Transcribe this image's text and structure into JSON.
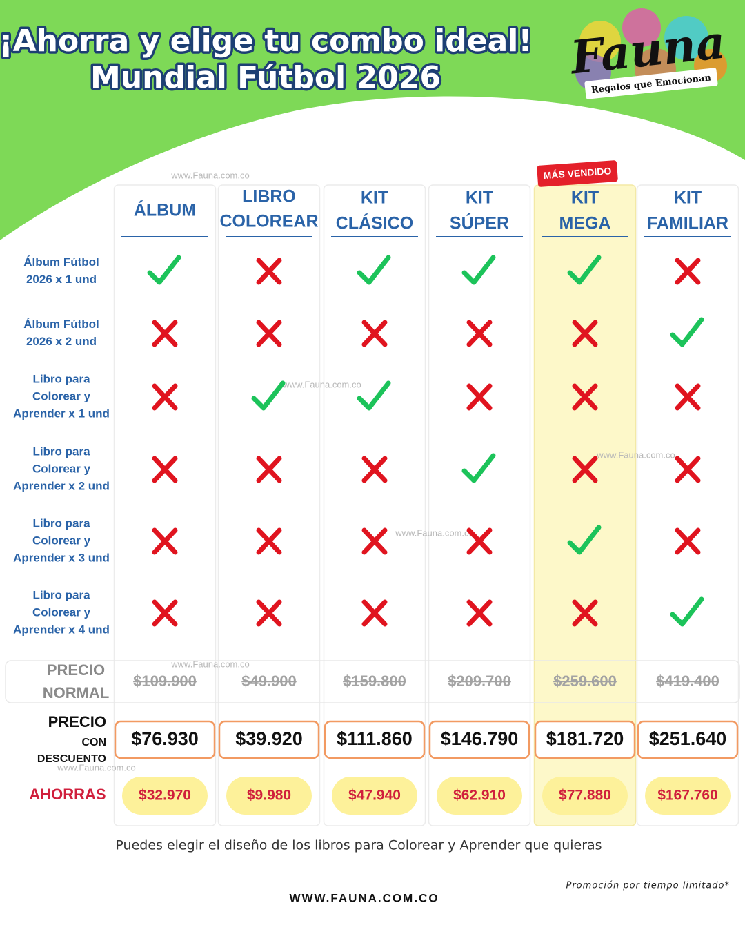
{
  "header": {
    "title_lines": [
      "¡Ahorra y elige tu combo ideal!",
      "Mundial Fútbol 2026"
    ],
    "logo": "Fauna",
    "logo_tagline": "Regalos que Emocionan"
  },
  "watermark": "www.Fauna.com.co",
  "table": {
    "badge": "MÁS VENDIDO",
    "columns": [
      {
        "name": [
          "ÁLBUM"
        ],
        "normal_price": "$109.900",
        "discount_price": "$76.930",
        "savings": "$32.970"
      },
      {
        "name": [
          "LIBRO",
          "COLOREAR"
        ],
        "normal_price": "$49.900",
        "discount_price": "$39.920",
        "savings": "$9.980"
      },
      {
        "name": [
          "KIT",
          "CLÁSICO"
        ],
        "normal_price": "$159.800",
        "discount_price": "$111.860",
        "savings": "$47.940"
      },
      {
        "name": [
          "KIT",
          "SÚPER"
        ],
        "normal_price": "$209.700",
        "discount_price": "$146.790",
        "savings": "$62.910"
      },
      {
        "name": [
          "KIT",
          "MEGA"
        ],
        "normal_price": "$259.600",
        "discount_price": "$181.720",
        "savings": "$77.880"
      },
      {
        "name": [
          "KIT",
          "FAMILIAR"
        ],
        "normal_price": "$419.400",
        "discount_price": "$251.640",
        "savings": "$167.760"
      }
    ],
    "rows": [
      {
        "label": [
          "Álbum Fútbol",
          "2026 x 1 und"
        ],
        "cells": [
          true,
          false,
          true,
          true,
          true,
          false
        ]
      },
      {
        "label": [
          "Álbum Fútbol",
          "2026 x 2 und"
        ],
        "cells": [
          false,
          false,
          false,
          false,
          false,
          true
        ]
      },
      {
        "label": [
          "Libro para",
          "Colorear y",
          "Aprender x 1 und"
        ],
        "cells": [
          false,
          true,
          true,
          false,
          false,
          false
        ]
      },
      {
        "label": [
          "Libro para",
          "Colorear y",
          "Aprender x 2 und"
        ],
        "cells": [
          false,
          false,
          false,
          true,
          false,
          false
        ]
      },
      {
        "label": [
          "Libro para",
          "Colorear y",
          "Aprender x 3 und"
        ],
        "cells": [
          false,
          false,
          false,
          false,
          true,
          false
        ]
      },
      {
        "label": [
          "Libro para",
          "Colorear y",
          "Aprender x 4 und"
        ],
        "cells": [
          false,
          false,
          false,
          false,
          false,
          true
        ]
      }
    ],
    "normal_label": [
      "PRECIO",
      "NORMAL"
    ],
    "discount_label": [
      "PRECIO",
      "CON",
      "DESCUENTO"
    ],
    "savings_label": "AHORRAS"
  },
  "footer": {
    "note": "Puedes elegir el diseño de los libros para Colorear y Aprender que quieras",
    "promo": "Promoción por tiempo limitado*",
    "website": "WWW.FAUNA.COM.CO"
  }
}
